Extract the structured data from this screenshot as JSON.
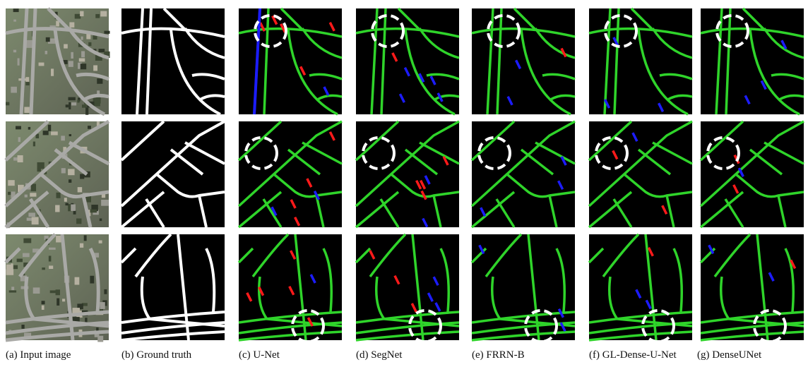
{
  "captions": [
    "(a) Input image",
    "(b) Ground truth",
    "(c) U-Net",
    "(d) SegNet",
    "(e) FRRN-B",
    "(f) GL-Dense-U-Net",
    "(g) DenseUNet"
  ]
}
